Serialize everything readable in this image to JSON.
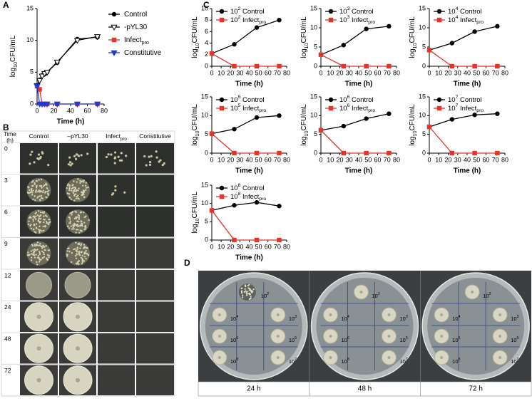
{
  "panel_labels": [
    "A",
    "B",
    "C",
    "D"
  ],
  "chart_data": [
    {
      "type": "line",
      "x_label": "Time (h)",
      "y_label": [
        "log",
        {
          "sub": "10"
        },
        "CFU/mL"
      ],
      "x": [
        0,
        3,
        6,
        9,
        12,
        24,
        48,
        72
      ],
      "xlim": [
        0,
        80
      ],
      "xticks": [
        0,
        20,
        40,
        60,
        80
      ],
      "ylim": [
        0,
        15
      ],
      "yticks": [
        0,
        5,
        10,
        15
      ],
      "legend": "outside-right",
      "series": [
        {
          "name": [
            "Control"
          ],
          "color": "#000000",
          "marker": "circle",
          "values": [
            2.8,
            3.8,
            4.5,
            4.7,
            5.0,
            6.5,
            10.2,
            10.5
          ]
        },
        {
          "name": [
            "-pYL30"
          ],
          "color": "#000000",
          "marker": "triangle-down-open",
          "values": [
            2.9,
            3.7,
            4.4,
            4.8,
            5.0,
            6.6,
            10.0,
            10.6
          ]
        },
        {
          "name": [
            "Infect",
            {
              "sub": "pro"
            }
          ],
          "color": "#e3342b",
          "marker": "square",
          "values": [
            2.8,
            2.3,
            0,
            0,
            0,
            0,
            0,
            0
          ]
        },
        {
          "name": [
            "Constitutive"
          ],
          "color": "#1f3ad6",
          "marker": "triangle-down",
          "values": [
            2.8,
            0,
            0,
            0,
            0,
            0,
            0,
            0
          ]
        }
      ]
    },
    {
      "type": "line",
      "x_label": "Time (h)",
      "y_label": [
        "log",
        {
          "sub": "10"
        },
        "CFU/mL"
      ],
      "x": [
        0,
        24,
        48,
        72
      ],
      "xlim": [
        0,
        80
      ],
      "xticks": [
        0,
        10,
        20,
        30,
        40,
        50,
        60,
        70,
        80
      ],
      "ylim": [
        0,
        10
      ],
      "yticks": [
        0,
        2,
        4,
        6,
        8,
        10
      ],
      "legend": "upper-left",
      "series": [
        {
          "name": [
            "10",
            {
              "sup": "2"
            },
            " Control"
          ],
          "color": "#000000",
          "marker": "circle",
          "values": [
            2.2,
            3.8,
            6.7,
            8.0
          ]
        },
        {
          "name": [
            "10",
            {
              "sup": "2"
            },
            " Infect",
            {
              "sub": "pro"
            }
          ],
          "color": "#e3342b",
          "marker": "square",
          "values": [
            2.2,
            0,
            0,
            0
          ]
        }
      ]
    },
    {
      "type": "line",
      "x_label": "Time (h)",
      "y_label": [
        "log",
        {
          "sub": "10"
        },
        "CFU/mL"
      ],
      "x": [
        0,
        24,
        48,
        72
      ],
      "xlim": [
        0,
        80
      ],
      "xticks": [
        0,
        10,
        20,
        30,
        40,
        50,
        60,
        70,
        80
      ],
      "ylim": [
        0,
        15
      ],
      "yticks": [
        0,
        5,
        10,
        15
      ],
      "legend": "upper-left",
      "series": [
        {
          "name": [
            "10",
            {
              "sup": "3"
            },
            " Control"
          ],
          "color": "#000000",
          "marker": "circle",
          "values": [
            3.0,
            5.5,
            9.7,
            10.4
          ]
        },
        {
          "name": [
            "10",
            {
              "sup": "3"
            },
            " Infect",
            {
              "sub": "pro"
            }
          ],
          "color": "#e3342b",
          "marker": "square",
          "values": [
            3.0,
            0,
            0,
            0
          ]
        }
      ]
    },
    {
      "type": "line",
      "x_label": "Time (h)",
      "y_label": [
        "log",
        {
          "sub": "10"
        },
        "CFU/mL"
      ],
      "x": [
        0,
        24,
        48,
        72
      ],
      "xlim": [
        0,
        80
      ],
      "xticks": [
        0,
        10,
        20,
        30,
        40,
        50,
        60,
        70,
        80
      ],
      "ylim": [
        0,
        15
      ],
      "yticks": [
        0,
        5,
        10,
        15
      ],
      "legend": "upper-left",
      "series": [
        {
          "name": [
            "10",
            {
              "sup": "4"
            },
            " Control"
          ],
          "color": "#000000",
          "marker": "circle",
          "values": [
            4.2,
            6.0,
            9.0,
            10.4
          ]
        },
        {
          "name": [
            "10",
            {
              "sup": "4"
            },
            " Infect",
            {
              "sub": "pro"
            }
          ],
          "color": "#e3342b",
          "marker": "square",
          "values": [
            4.2,
            0,
            0,
            0
          ]
        }
      ]
    },
    {
      "type": "line",
      "x_label": "Time (h)",
      "y_label": [
        "log",
        {
          "sub": "10"
        },
        "CFU/mL"
      ],
      "x": [
        0,
        24,
        48,
        72
      ],
      "xlim": [
        0,
        80
      ],
      "xticks": [
        0,
        10,
        20,
        30,
        40,
        50,
        60,
        70,
        80
      ],
      "ylim": [
        0,
        15
      ],
      "yticks": [
        0,
        5,
        10,
        15
      ],
      "legend": "upper-left",
      "series": [
        {
          "name": [
            "10",
            {
              "sup": "5"
            },
            " Control"
          ],
          "color": "#000000",
          "marker": "circle",
          "values": [
            5.2,
            6.4,
            9.5,
            10.0
          ]
        },
        {
          "name": [
            "10",
            {
              "sup": "5"
            },
            " Infect",
            {
              "sub": "pro"
            }
          ],
          "color": "#e3342b",
          "marker": "square",
          "values": [
            5.2,
            0,
            0,
            0
          ]
        }
      ]
    },
    {
      "type": "line",
      "x_label": "Time (h)",
      "y_label": [
        "log",
        {
          "sub": "10"
        },
        "CFU/mL"
      ],
      "x": [
        0,
        24,
        48,
        72
      ],
      "xlim": [
        0,
        80
      ],
      "xticks": [
        0,
        10,
        20,
        30,
        40,
        50,
        60,
        70,
        80
      ],
      "ylim": [
        0,
        15
      ],
      "yticks": [
        0,
        5,
        10,
        15
      ],
      "legend": "upper-left",
      "series": [
        {
          "name": [
            "10",
            {
              "sup": "6"
            },
            " Control"
          ],
          "color": "#000000",
          "marker": "circle",
          "values": [
            6.1,
            7.2,
            9.2,
            10.5
          ]
        },
        {
          "name": [
            "10",
            {
              "sup": "6"
            },
            " Infect",
            {
              "sub": "pro"
            }
          ],
          "color": "#e3342b",
          "marker": "square",
          "values": [
            6.1,
            0,
            0,
            0
          ]
        }
      ]
    },
    {
      "type": "line",
      "x_label": "Time (h)",
      "y_label": [
        "log",
        {
          "sub": "10"
        },
        "CFU/mL"
      ],
      "x": [
        0,
        24,
        48,
        72
      ],
      "xlim": [
        0,
        80
      ],
      "xticks": [
        0,
        10,
        20,
        30,
        40,
        50,
        60,
        70,
        80
      ],
      "ylim": [
        0,
        15
      ],
      "yticks": [
        0,
        5,
        10,
        15
      ],
      "legend": "upper-left",
      "series": [
        {
          "name": [
            "10",
            {
              "sup": "7"
            },
            " Control"
          ],
          "color": "#000000",
          "marker": "circle",
          "values": [
            7.0,
            9.0,
            10.2,
            10.5
          ]
        },
        {
          "name": [
            "10",
            {
              "sup": "7"
            },
            " Infect",
            {
              "sub": "pro"
            }
          ],
          "color": "#e3342b",
          "marker": "square",
          "values": [
            7.0,
            0,
            0,
            0
          ]
        }
      ]
    },
    {
      "type": "line",
      "x_label": "Time (h)",
      "y_label": [
        "log",
        {
          "sub": "10"
        },
        "CFU/mL"
      ],
      "x": [
        0,
        24,
        48,
        72
      ],
      "xlim": [
        0,
        80
      ],
      "xticks": [
        0,
        10,
        20,
        30,
        40,
        50,
        60,
        70,
        80
      ],
      "ylim": [
        0,
        15
      ],
      "yticks": [
        0,
        5,
        10,
        15
      ],
      "legend": "upper-left",
      "series": [
        {
          "name": [
            "10",
            {
              "sup": "8"
            },
            " Control"
          ],
          "color": "#000000",
          "marker": "circle",
          "values": [
            8.1,
            9.5,
            10.3,
            9.3
          ]
        },
        {
          "name": [
            "10",
            {
              "sup": "8"
            },
            " Infect",
            {
              "sub": "pro"
            }
          ],
          "color": "#e3342b",
          "marker": "square",
          "values": [
            8.1,
            0,
            0,
            0
          ]
        }
      ]
    }
  ],
  "panel_b": {
    "time_header": [
      "Time",
      "(h)"
    ],
    "columns": [
      [
        "Control"
      ],
      [
        "–pYL30"
      ],
      [
        "Infect",
        {
          "sub": "pro"
        }
      ],
      [
        "Constitutive"
      ]
    ],
    "rows": [
      "0",
      "3",
      "6",
      "9",
      "12",
      "24",
      "48",
      "72"
    ]
  },
  "panel_d": {
    "plates": [
      {
        "caption": "24 h",
        "labels": [
          [
            "10",
            {
              "sup": "2"
            }
          ],
          [
            "10",
            {
              "sup": "4"
            }
          ],
          [
            "10",
            {
              "sup": "3"
            }
          ],
          [
            "10",
            {
              "sup": "6"
            }
          ],
          [
            "10",
            {
              "sup": "5"
            }
          ],
          [
            "10",
            {
              "sup": "8"
            }
          ],
          [
            "10",
            {
              "sup": "7"
            }
          ]
        ]
      },
      {
        "caption": "48 h",
        "labels": [
          [
            "10",
            {
              "sup": "2"
            }
          ],
          [
            "10",
            {
              "sup": "4"
            }
          ],
          [
            "10",
            {
              "sup": "3"
            }
          ],
          [
            "10",
            {
              "sup": "6"
            }
          ],
          [
            "10",
            {
              "sup": "5"
            }
          ],
          [
            "10",
            {
              "sup": "8"
            }
          ],
          [
            "10",
            {
              "sup": "7"
            }
          ]
        ]
      },
      {
        "caption": "72 h",
        "labels": [
          [
            "10",
            {
              "sup": "2"
            }
          ],
          [
            "10",
            {
              "sup": "4"
            }
          ],
          [
            "10",
            {
              "sup": "3"
            }
          ],
          [
            "10",
            {
              "sup": "6"
            }
          ],
          [
            "10",
            {
              "sup": "5"
            }
          ],
          [
            "10",
            {
              "sup": "8"
            }
          ],
          [
            "10",
            {
              "sup": "7"
            }
          ]
        ]
      }
    ]
  }
}
